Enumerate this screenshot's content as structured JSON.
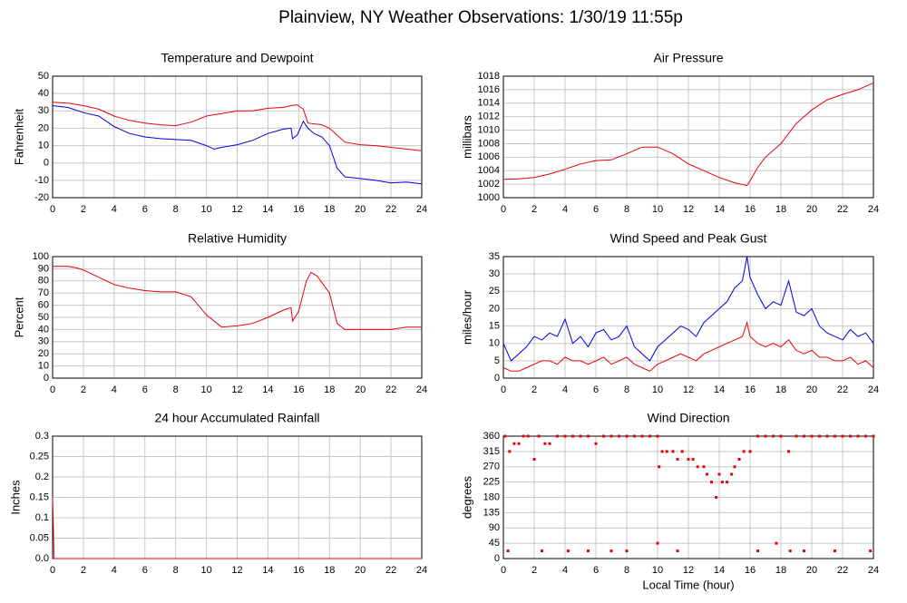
{
  "title": "Plainview, NY Weather Observations: 1/30/19 11:55p",
  "chart_data": [
    {
      "type": "line",
      "title": "Temperature and Dewpoint",
      "ylabel": "Fahrenheit",
      "x": [
        0,
        1,
        2,
        3,
        4,
        5,
        6,
        7,
        8,
        9,
        10,
        10.5,
        11,
        12,
        13,
        14,
        15,
        15.5,
        15.6,
        15.9,
        16.3,
        16.6,
        17,
        17.5,
        18,
        18.5,
        19,
        20,
        21,
        22,
        23,
        24
      ],
      "series": [
        {
          "name": "Temperature",
          "color": "#e8000b",
          "values": [
            35,
            34.5,
            33,
            31,
            27,
            24.5,
            23,
            22,
            21.5,
            23.5,
            27,
            27.8,
            28.5,
            30,
            30,
            31.5,
            32,
            33,
            33.2,
            33.5,
            31,
            23,
            22.5,
            22,
            20,
            16,
            12,
            10.5,
            10,
            9,
            8,
            7
          ]
        },
        {
          "name": "Dewpoint",
          "color": "#0000e0",
          "values": [
            33,
            32,
            29,
            27,
            21,
            17,
            15,
            14,
            13.5,
            13,
            10,
            8,
            9,
            10.5,
            13,
            17,
            19.5,
            20,
            14,
            16,
            24,
            20,
            17,
            15,
            10,
            -3,
            -8,
            -9,
            -10,
            -11.5,
            -11,
            -12
          ]
        }
      ],
      "xlim": [
        0,
        24
      ],
      "xticks": [
        0,
        2,
        4,
        6,
        8,
        10,
        12,
        14,
        16,
        18,
        20,
        22,
        24
      ],
      "ylim": [
        -20,
        50
      ],
      "yticks": [
        -20,
        -10,
        0,
        10,
        20,
        30,
        40,
        50
      ],
      "grid": true
    },
    {
      "type": "line",
      "title": "Air Pressure",
      "ylabel": "millibars",
      "x": [
        0,
        1,
        2,
        3,
        4,
        5,
        6,
        7,
        8,
        9,
        10,
        11,
        12,
        13,
        14,
        15,
        15.8,
        16,
        16.5,
        17,
        18,
        19,
        20,
        21,
        22,
        23,
        24
      ],
      "series": [
        {
          "name": "Pressure",
          "color": "#e8000b",
          "values": [
            1002.7,
            1002.8,
            1003,
            1003.5,
            1004.2,
            1005,
            1005.5,
            1005.6,
            1006.5,
            1007.5,
            1007.5,
            1006.5,
            1005,
            1004,
            1003,
            1002.2,
            1001.8,
            1002.5,
            1004.5,
            1006,
            1008,
            1011,
            1013,
            1014.5,
            1015.3,
            1016,
            1017
          ]
        }
      ],
      "xlim": [
        0,
        24
      ],
      "xticks": [
        0,
        2,
        4,
        6,
        8,
        10,
        12,
        14,
        16,
        18,
        20,
        22,
        24
      ],
      "ylim": [
        1000,
        1018
      ],
      "yticks": [
        1000,
        1002,
        1004,
        1006,
        1008,
        1010,
        1012,
        1014,
        1016,
        1018
      ],
      "grid": true
    },
    {
      "type": "line",
      "title": "Relative Humidity",
      "ylabel": "Percent",
      "x": [
        0,
        1,
        1.5,
        2,
        3,
        4,
        5,
        6,
        7,
        8,
        9,
        10,
        11,
        12,
        13,
        14,
        15,
        15.5,
        15.6,
        16,
        16.5,
        16.8,
        17.2,
        18,
        18.5,
        19,
        20,
        21,
        22,
        23,
        24
      ],
      "series": [
        {
          "name": "Humidity",
          "color": "#e8000b",
          "values": [
            92,
            92,
            91,
            89,
            83,
            77,
            74,
            72,
            71,
            71,
            67,
            52,
            42,
            43,
            45,
            50,
            56,
            58,
            47,
            55,
            80,
            87,
            84,
            70,
            45,
            40,
            40,
            40,
            40,
            42,
            42
          ]
        }
      ],
      "xlim": [
        0,
        24
      ],
      "xticks": [
        0,
        2,
        4,
        6,
        8,
        10,
        12,
        14,
        16,
        18,
        20,
        22,
        24
      ],
      "ylim": [
        0,
        100
      ],
      "yticks": [
        0,
        10,
        20,
        30,
        40,
        50,
        60,
        70,
        80,
        90,
        100
      ],
      "grid": true
    },
    {
      "type": "line",
      "title": "Wind Speed and Peak Gust",
      "ylabel": "miles/hour",
      "x": [
        0,
        0.5,
        1,
        1.5,
        2,
        2.5,
        3,
        3.5,
        4,
        4.5,
        5,
        5.5,
        6,
        6.5,
        7,
        7.5,
        8,
        8.5,
        9,
        9.5,
        10,
        10.5,
        11,
        11.5,
        12,
        12.5,
        13,
        13.5,
        14,
        14.5,
        15,
        15.5,
        15.8,
        16,
        16.5,
        17,
        17.5,
        18,
        18.5,
        19,
        19.5,
        20,
        20.5,
        21,
        21.5,
        22,
        22.5,
        23,
        23.5,
        24
      ],
      "series": [
        {
          "name": "Peak Gust",
          "color": "#0000e0",
          "values": [
            10,
            5,
            7,
            9,
            12,
            11,
            13,
            12,
            17,
            10,
            12,
            9,
            13,
            14,
            11,
            12,
            15,
            9,
            7,
            5,
            9,
            11,
            13,
            15,
            14,
            12,
            16,
            18,
            20,
            22,
            26,
            28,
            35,
            29,
            24,
            20,
            22,
            21,
            28,
            19,
            18,
            20,
            15,
            13,
            12,
            11,
            14,
            12,
            13,
            10
          ]
        },
        {
          "name": "Wind Speed",
          "color": "#e8000b",
          "values": [
            3,
            2,
            2,
            3,
            4,
            5,
            5,
            4,
            6,
            5,
            5,
            4,
            5,
            6,
            4,
            5,
            6,
            4,
            3,
            2,
            4,
            5,
            6,
            7,
            6,
            5,
            7,
            8,
            9,
            10,
            11,
            12,
            16,
            12,
            10,
            9,
            10,
            9,
            11,
            8,
            7,
            8,
            6,
            6,
            5,
            5,
            6,
            4,
            5,
            3
          ]
        }
      ],
      "xlim": [
        0,
        24
      ],
      "xticks": [
        0,
        2,
        4,
        6,
        8,
        10,
        12,
        14,
        16,
        18,
        20,
        22,
        24
      ],
      "ylim": [
        0,
        35
      ],
      "yticks": [
        0,
        5,
        10,
        15,
        20,
        25,
        30,
        35
      ],
      "grid": true
    },
    {
      "type": "line",
      "title": "24 hour Accumulated Rainfall",
      "ylabel": "Inches",
      "x": [
        0,
        0.1,
        24
      ],
      "series": [
        {
          "name": "Rainfall",
          "color": "#e8000b",
          "values": [
            0.15,
            0,
            0
          ]
        }
      ],
      "xlim": [
        0,
        24
      ],
      "xticks": [
        0,
        2,
        4,
        6,
        8,
        10,
        12,
        14,
        16,
        18,
        20,
        22,
        24
      ],
      "ylim": [
        0,
        0.3
      ],
      "yticks": [
        {
          "value": 0,
          "label": "0.0"
        },
        0.05,
        0.1,
        0.15,
        0.2,
        0.25,
        0.3
      ],
      "grid": true
    },
    {
      "type": "scatter",
      "title": "Wind Direction",
      "ylabel": "degrees",
      "xlabel": "Local Time (hour)",
      "x": [
        0.1,
        0.4,
        0.7,
        1,
        1.3,
        1.6,
        2,
        2.3,
        2.7,
        3,
        3.5,
        4,
        4.5,
        5,
        5.5,
        6,
        6.5,
        7,
        7.5,
        8,
        8.5,
        9,
        9.5,
        10,
        10.1,
        10.3,
        10.6,
        11,
        11.3,
        11.6,
        12,
        12.3,
        12.6,
        13,
        13.2,
        13.5,
        13.8,
        14,
        14.2,
        14.5,
        14.8,
        15,
        15.3,
        15.6,
        16,
        16.5,
        17,
        17.5,
        18,
        18.5,
        19,
        19.5,
        20,
        20.5,
        21,
        21.5,
        22,
        22.5,
        23,
        23.5,
        24,
        0.3,
        2.5,
        4.2,
        5.5,
        7,
        8,
        10,
        11.3,
        16.5,
        17.7,
        18.6,
        19.5,
        21.5,
        23.8
      ],
      "series": [
        {
          "name": "Direction",
          "color": "#e8000b",
          "values": [
            360,
            315,
            338,
            338,
            360,
            360,
            292,
            360,
            338,
            338,
            360,
            360,
            360,
            360,
            360,
            338,
            360,
            360,
            360,
            360,
            360,
            360,
            360,
            360,
            270,
            315,
            315,
            315,
            292,
            315,
            292,
            292,
            270,
            270,
            248,
            225,
            180,
            248,
            225,
            225,
            248,
            270,
            292,
            315,
            315,
            360,
            360,
            360,
            360,
            315,
            360,
            360,
            360,
            360,
            360,
            360,
            360,
            360,
            360,
            360,
            360,
            22.5,
            22.5,
            22.5,
            22.5,
            22.5,
            22.5,
            45,
            22.5,
            22.5,
            45,
            22.5,
            22.5,
            22.5,
            22.5
          ]
        }
      ],
      "xlim": [
        0,
        24
      ],
      "xticks": [
        0,
        2,
        4,
        6,
        8,
        10,
        12,
        14,
        16,
        18,
        20,
        22,
        24
      ],
      "ylim": [
        0,
        360
      ],
      "yticks": [
        0,
        45,
        90,
        135,
        180,
        225,
        270,
        315,
        360
      ],
      "grid": true
    }
  ]
}
